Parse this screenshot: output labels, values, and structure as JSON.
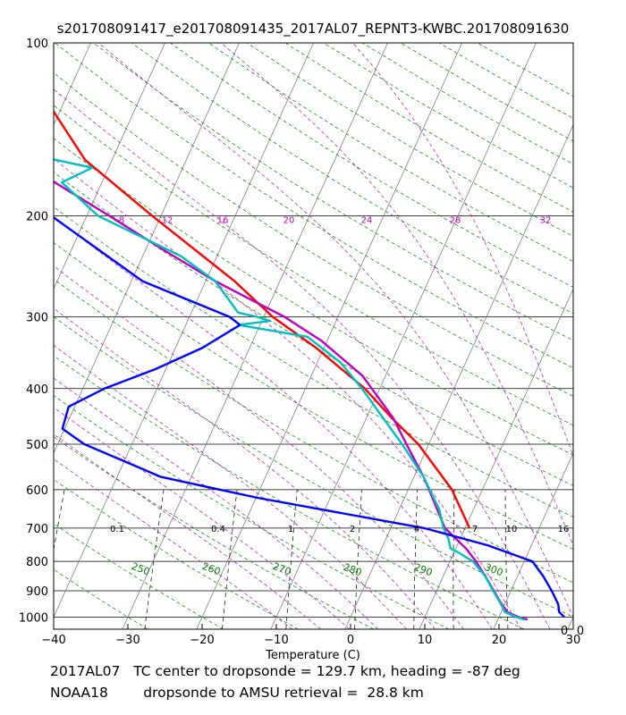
{
  "title": "s201708091417_e201708091435_2017AL07_REPNT3-KWBC.201708091630",
  "footer": {
    "line1": "2017AL07   TC center to dropsonde = 129.7 km, heading = -87 deg",
    "line2": "NOAA18        dropsonde to AMSU retrieval =  28.8 km"
  },
  "chart_data": {
    "type": "line",
    "subtype": "skew-T log-p diagram",
    "title": "s201708091417_e201708091435_2017AL07_REPNT3-KWBC.201708091630",
    "xlabel": "Temperature (C)",
    "ylabel": "",
    "xlim": [
      -40,
      30
    ],
    "ylim": [
      1050,
      100
    ],
    "y_scale": "log",
    "x_ticks": [
      "−40",
      "−30",
      "−20",
      "−10",
      "0",
      "10",
      "20",
      "30"
    ],
    "y_ticks": [
      "100",
      "200",
      "300",
      "400",
      "500",
      "600",
      "700",
      "800",
      "900",
      "1000"
    ],
    "corner_labels": [
      "0",
      "0"
    ],
    "background_lines": {
      "isotherms_color": "#808080",
      "dry_adiabats_color": "#008000",
      "moist_adiabats_color": "#bf00bf",
      "mixing_ratio_color": "#000000",
      "mixing_ratio_labels": [
        "0.1",
        "0.4",
        "1",
        "2",
        "4",
        "7",
        "10",
        "16"
      ],
      "saturation_q_labels": [
        "8",
        "12",
        "16",
        "20",
        "24",
        "28",
        "32"
      ],
      "theta_labels": [
        "250",
        "260",
        "270",
        "280",
        "290",
        "300"
      ]
    },
    "series": [
      {
        "color": "#ff0000",
        "pressure": [
          100,
          130,
          160,
          200,
          260,
          300,
          340,
          400,
          450,
          500,
          600,
          700
        ],
        "temperature": [
          -79.4,
          -71.3,
          -63.6,
          -51.2,
          -36.1,
          -28.8,
          -21.0,
          -12.0,
          -6.6,
          -1.4,
          5.9,
          10.6
        ]
      },
      {
        "color": "#bf00bf",
        "pressure": [
          100,
          108,
          120,
          135,
          160,
          200,
          230,
          260,
          280,
          300,
          330,
          380,
          450,
          500,
          570,
          700,
          730,
          760,
          800,
          850,
          900,
          940,
          980,
          1000,
          1010
        ],
        "temperature": [
          -79.5,
          -81.6,
          -82.5,
          -80.6,
          -72.6,
          -57.0,
          -47.4,
          -38.7,
          -32.8,
          -27.2,
          -20.8,
          -13.1,
          -6.4,
          -3.0,
          1.3,
          7.3,
          9.4,
          11.4,
          13.5,
          15.7,
          17.7,
          19.2,
          20.8,
          22.6,
          24.0
        ]
      },
      {
        "color": "#00bfbf",
        "pressure": [
          110,
          120,
          135,
          150,
          165,
          175,
          200,
          235,
          260,
          295,
          300,
          305,
          310,
          325,
          360,
          400,
          460,
          500,
          570,
          650,
          700,
          730,
          760,
          770,
          800,
          850,
          900,
          950,
          980,
          1000,
          1010
        ],
        "temperature": [
          -75.6,
          -79.1,
          -82.4,
          -78.4,
          -62.2,
          -65.4,
          -58.5,
          -44.9,
          -38.7,
          -33.7,
          -30.9,
          -28.9,
          -32.9,
          -22.9,
          -16.9,
          -12.4,
          -6.9,
          -3.6,
          1.3,
          5.4,
          7.1,
          8.4,
          9.3,
          10.4,
          13.1,
          15.7,
          17.6,
          19.5,
          20.5,
          22.3,
          23.6
        ]
      },
      {
        "color": "#0000ff",
        "pressure": [
          100,
          125,
          140,
          160,
          200,
          260,
          300,
          310,
          340,
          370,
          400,
          430,
          470,
          500,
          570,
          620,
          700,
          750,
          800,
          850,
          900,
          950,
          980,
          1000
        ],
        "temperature": [
          -88.6,
          -89.6,
          -86.9,
          -80.5,
          -64.8,
          -48.5,
          -34.6,
          -32.7,
          -36.4,
          -41.4,
          -47.1,
          -50.8,
          -50.3,
          -46.4,
          -34.1,
          -19.8,
          4.5,
          14.1,
          21.1,
          23.5,
          25.5,
          27.2,
          27.8,
          28.8
        ]
      }
    ]
  }
}
